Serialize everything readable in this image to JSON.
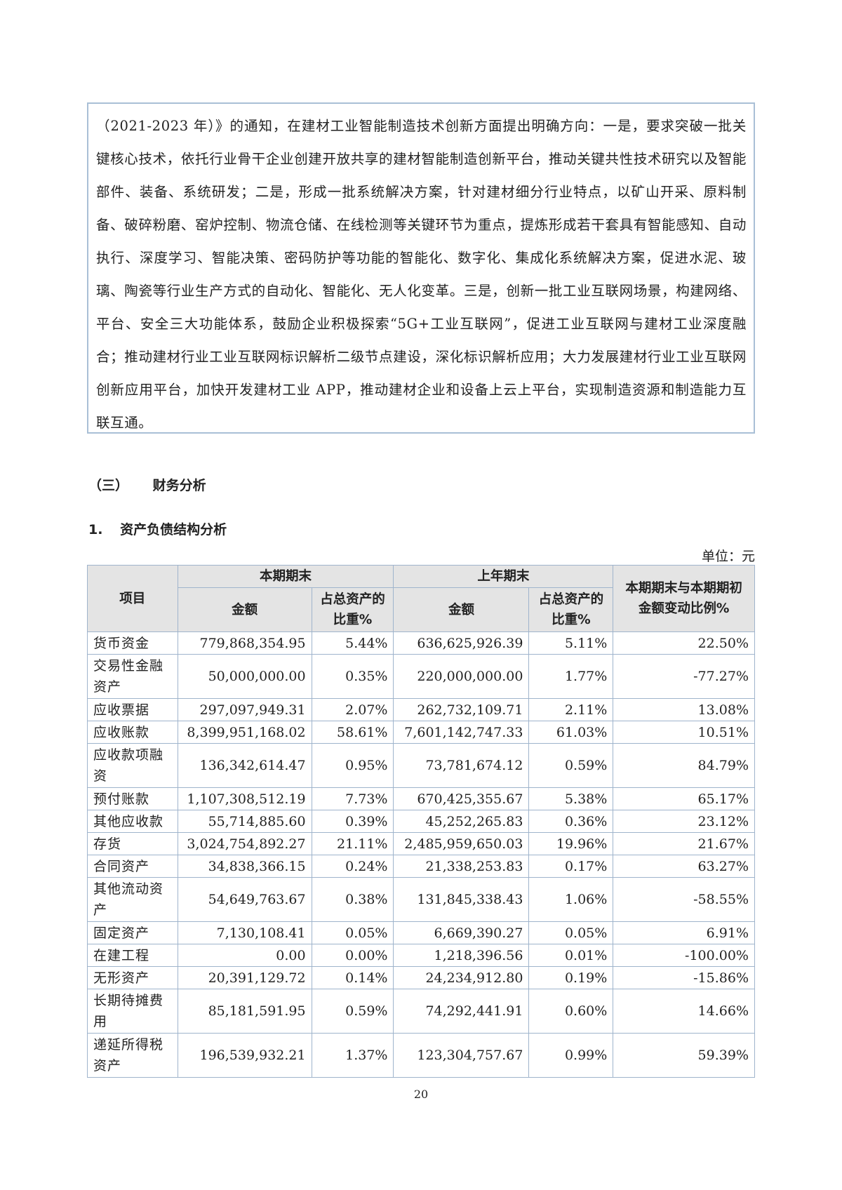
{
  "box_paragraph": "（2021-2023 年）》的通知，在建材工业智能制造技术创新方面提出明确方向：一是，要求突破一批关键核心技术，依托行业骨干企业创建开放共享的建材智能制造创新平台，推动关键共性技术研究以及智能部件、装备、系统研发；二是，形成一批系统解决方案，针对建材细分行业特点，以矿山开采、原料制备、破碎粉磨、窑炉控制、物流仓储、在线检测等关键环节为重点，提炼形成若干套具有智能感知、自动执行、深度学习、智能决策、密码防护等功能的智能化、数字化、集成化系统解决方案，促进水泥、玻璃、陶瓷等行业生产方式的自动化、智能化、无人化变革。三是，创新一批工业互联网场景，构建网络、平台、安全三大功能体系，鼓励企业积极探索“5G+工业互联网”，促进工业互联网与建材工业深度融合；推动建材行业工业互联网标识解析二级节点建设，深化标识解析应用；大力发展建材行业工业互联网创新应用平台，加快开发建材工业 APP，推动建材企业和设备上云上平台，实现制造资源和制造能力互联互通。",
  "section_number": "（三）",
  "section_title": "财务分析",
  "subsection_number": "1.",
  "subsection_title": "资产负债结构分析",
  "unit_label": "单位：元",
  "table": {
    "headers": {
      "item": "项目",
      "current": "本期期末",
      "previous": "上年期末",
      "amount": "金额",
      "ratio": "占总资产的比重%",
      "change": "本期期末与本期期初金额变动比例%"
    },
    "rows": [
      [
        "货币资金",
        "779,868,354.95",
        "5.44%",
        "636,625,926.39",
        "5.11%",
        "22.50%"
      ],
      [
        "交易性金融资产",
        "50,000,000.00",
        "0.35%",
        "220,000,000.00",
        "1.77%",
        "-77.27%"
      ],
      [
        "应收票据",
        "297,097,949.31",
        "2.07%",
        "262,732,109.71",
        "2.11%",
        "13.08%"
      ],
      [
        "应收账款",
        "8,399,951,168.02",
        "58.61%",
        "7,601,142,747.33",
        "61.03%",
        "10.51%"
      ],
      [
        "应收款项融资",
        "136,342,614.47",
        "0.95%",
        "73,781,674.12",
        "0.59%",
        "84.79%"
      ],
      [
        "预付账款",
        "1,107,308,512.19",
        "7.73%",
        "670,425,355.67",
        "5.38%",
        "65.17%"
      ],
      [
        "其他应收款",
        "55,714,885.60",
        "0.39%",
        "45,252,265.83",
        "0.36%",
        "23.12%"
      ],
      [
        "存货",
        "3,024,754,892.27",
        "21.11%",
        "2,485,959,650.03",
        "19.96%",
        "21.67%"
      ],
      [
        "合同资产",
        "34,838,366.15",
        "0.24%",
        "21,338,253.83",
        "0.17%",
        "63.27%"
      ],
      [
        "其他流动资产",
        "54,649,763.67",
        "0.38%",
        "131,845,338.43",
        "1.06%",
        "-58.55%"
      ],
      [
        "固定资产",
        "7,130,108.41",
        "0.05%",
        "6,669,390.27",
        "0.05%",
        "6.91%"
      ],
      [
        "在建工程",
        "0.00",
        "0.00%",
        "1,218,396.56",
        "0.01%",
        "-100.00%"
      ],
      [
        "无形资产",
        "20,391,129.72",
        "0.14%",
        "24,234,912.80",
        "0.19%",
        "-15.86%"
      ],
      [
        "长期待摊费用",
        "85,181,591.95",
        "0.59%",
        "74,292,441.91",
        "0.60%",
        "14.66%"
      ],
      [
        "递延所得税资产",
        "196,539,932.21",
        "1.37%",
        "123,304,757.67",
        "0.99%",
        "59.39%"
      ]
    ]
  },
  "page_number": "20"
}
